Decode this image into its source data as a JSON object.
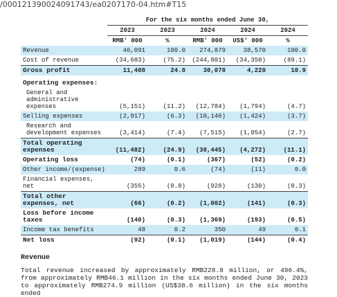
{
  "url": "/000121390024091743/ea0207170-04.htm#T15",
  "table": {
    "caption": "For the six months ended June 30,",
    "years": [
      "2023",
      "2023",
      "2024",
      "2024",
      "2024"
    ],
    "units": [
      "RMB' 000",
      "%",
      "RMB' 000",
      "US$' 000",
      "%"
    ],
    "rows": [
      {
        "label": "Revenue",
        "values": [
          "46,091",
          "100.0",
          "274,879",
          "38,570",
          "100.0"
        ]
      },
      {
        "label": "Cost of revenue",
        "values": [
          "(34,683)",
          "(75.2)",
          "(244,801)",
          "(34,350)",
          "(89.1)"
        ]
      },
      {
        "label": "Gross profit",
        "values": [
          "11,408",
          "24.8",
          "30,078",
          "4,220",
          "10.9"
        ]
      },
      {
        "label": "Operating expenses:",
        "values": []
      },
      {
        "label": "General and administrative expenses",
        "values": [
          "(5,151)",
          "(11.2)",
          "(12,784)",
          "(1,794)",
          "(4.7)"
        ]
      },
      {
        "label": "Selling expenses",
        "values": [
          "(2,917)",
          "(6.3)",
          "(10,146)",
          "(1,424)",
          "(3.7)"
        ]
      },
      {
        "label": "Research and development expenses",
        "values": [
          "(3,414)",
          "(7.4)",
          "(7,515)",
          "(1,054)",
          "(2.7)"
        ]
      },
      {
        "label": "Total operating expenses",
        "values": [
          "(11,482)",
          "(24.9)",
          "(30,445)",
          "(4,272)",
          "(11.1)"
        ]
      },
      {
        "label": "Operating loss",
        "values": [
          "(74)",
          "(0.1)",
          "(367)",
          "(52)",
          "(0.2)"
        ]
      },
      {
        "label": "Other income/(expense)",
        "values": [
          "289",
          "0.6",
          "(74)",
          "(11)",
          "0.0"
        ]
      },
      {
        "label": "Financial expenses, net",
        "values": [
          "(355)",
          "(0.8)",
          "(928)",
          "(130)",
          "(0.3)"
        ]
      },
      {
        "label": "Total other expenses, net",
        "values": [
          "(66)",
          "(0.2)",
          "(1,002)",
          "(141)",
          "(0.3)"
        ]
      },
      {
        "label": "Loss before income taxes",
        "values": [
          "(140)",
          "(0.3)",
          "(1,369)",
          "(193)",
          "(0.5)"
        ]
      },
      {
        "label": "Income tax benefits",
        "values": [
          "48",
          "0.2",
          "350",
          "49",
          "0.1"
        ]
      },
      {
        "label": "Net loss",
        "values": [
          "(92)",
          "(0.1)",
          "(1,019)",
          "(144)",
          "(0.4)"
        ]
      }
    ]
  },
  "section": {
    "heading": "Revenue",
    "text": "Total revenue increased by approximately RMB228.8 million, or 496.4%, from approximately RMB46.1 million in the six months ended June 30, 2023 to approximately RMB274.9 million (US$38.6 million) in the six months ended"
  }
}
